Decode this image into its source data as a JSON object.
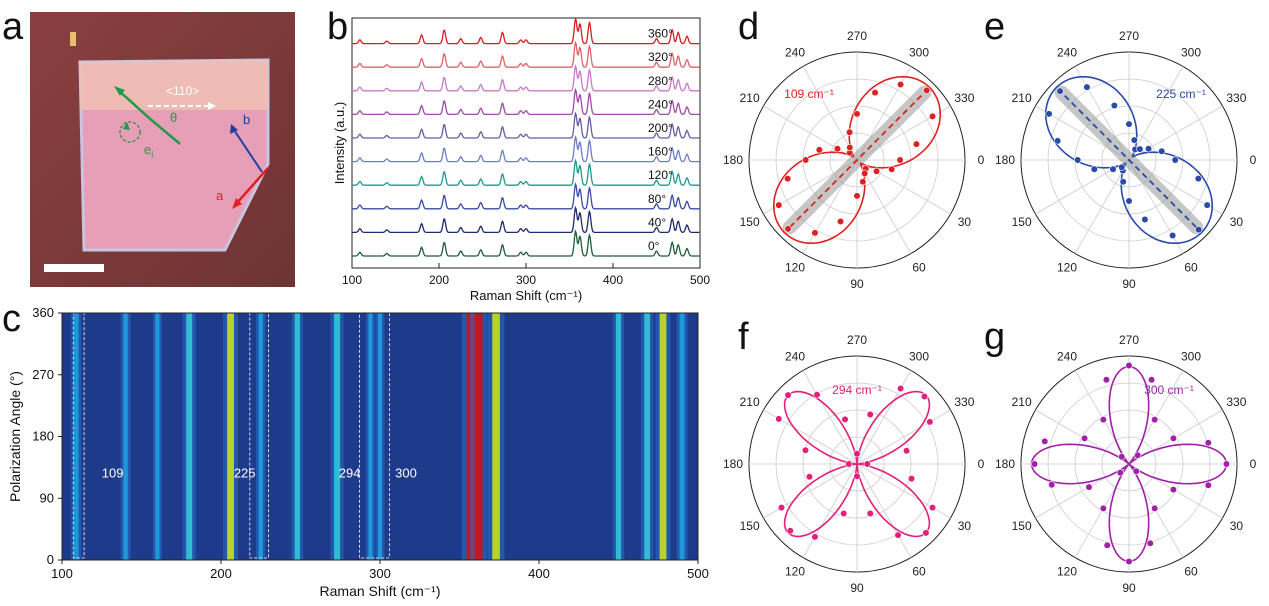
{
  "panels": {
    "a": {
      "letter": "a",
      "direction_label": "<110>",
      "theta": "θ",
      "ei": "e",
      "ei_sub": "i",
      "axis_a": "a",
      "axis_b": "b"
    },
    "b": {
      "letter": "b"
    },
    "c": {
      "letter": "c"
    },
    "d": {
      "letter": "d"
    },
    "e": {
      "letter": "e"
    },
    "f": {
      "letter": "f"
    },
    "g": {
      "letter": "g"
    }
  },
  "chart_data": [
    {
      "id": "b",
      "type": "line",
      "xlabel": "Raman Shift (cm⁻¹)",
      "ylabel": "Intensity (a.u.)",
      "xlim": [
        100,
        500
      ],
      "xticks": [
        "100",
        "200",
        "300",
        "400",
        "500"
      ],
      "peaks": [
        109,
        140,
        180,
        206,
        225,
        248,
        273,
        294,
        300,
        357,
        362,
        373,
        450,
        468,
        475,
        485
      ],
      "series": [
        {
          "name": "0°",
          "color": "#1e5c3a"
        },
        {
          "name": "40°",
          "color": "#1f2a6e"
        },
        {
          "name": "80°",
          "color": "#3a4aa8"
        },
        {
          "name": "120°",
          "color": "#1c9a8e"
        },
        {
          "name": "160°",
          "color": "#6c7ec8"
        },
        {
          "name": "200°",
          "color": "#6a5aa8"
        },
        {
          "name": "240°",
          "color": "#a04aa8"
        },
        {
          "name": "280°",
          "color": "#c879c8"
        },
        {
          "name": "320°",
          "color": "#e0606a"
        },
        {
          "name": "360°",
          "color": "#d61f1f"
        }
      ]
    },
    {
      "id": "c",
      "type": "heatmap",
      "xlabel": "Raman Shift (cm⁻¹)",
      "ylabel": "Polarization Angle (°)",
      "xlim": [
        100,
        500
      ],
      "ylim": [
        0,
        360
      ],
      "xticks": [
        "100",
        "200",
        "300",
        "400",
        "500"
      ],
      "yticks": [
        "0",
        "90",
        "180",
        "270",
        "360"
      ],
      "annotations": [
        "109",
        "225",
        "294",
        "300"
      ],
      "bands": [
        {
          "x": 109,
          "intensity": 0.35
        },
        {
          "x": 140,
          "intensity": 0.3
        },
        {
          "x": 160,
          "intensity": 0.25
        },
        {
          "x": 180,
          "intensity": 0.6
        },
        {
          "x": 206,
          "intensity": 0.75
        },
        {
          "x": 225,
          "intensity": 0.3
        },
        {
          "x": 248,
          "intensity": 0.45
        },
        {
          "x": 273,
          "intensity": 0.6
        },
        {
          "x": 294,
          "intensity": 0.25
        },
        {
          "x": 300,
          "intensity": 0.25
        },
        {
          "x": 357,
          "intensity": 1.0
        },
        {
          "x": 362,
          "intensity": 0.95
        },
        {
          "x": 373,
          "intensity": 0.9
        },
        {
          "x": 450,
          "intensity": 0.45
        },
        {
          "x": 468,
          "intensity": 0.55
        },
        {
          "x": 478,
          "intensity": 0.75
        },
        {
          "x": 490,
          "intensity": 0.4
        }
      ]
    },
    {
      "id": "d",
      "type": "polar",
      "label": "109 cm⁻¹",
      "color": "#e02020",
      "angle_labels": [
        "270",
        "300",
        "330",
        "0",
        "30",
        "60",
        "90",
        "120",
        "150",
        "180",
        "210",
        "240"
      ],
      "model": {
        "a": 0.05,
        "b": 0.95,
        "phase": 135,
        "power": 2
      },
      "points_angles": [
        0,
        15,
        30,
        45,
        60,
        75,
        90,
        105,
        120,
        135,
        150,
        165,
        180,
        195,
        210,
        225,
        240,
        255,
        270,
        285,
        300,
        315,
        330,
        345
      ],
      "points_r": [
        0.42,
        0.35,
        0.22,
        0.12,
        0.15,
        0.22,
        0.35,
        0.62,
        0.82,
        0.95,
        0.88,
        0.7,
        0.5,
        0.38,
        0.22,
        0.1,
        0.14,
        0.28,
        0.45,
        0.68,
        0.85,
        0.96,
        0.85,
        0.6
      ]
    },
    {
      "id": "e",
      "type": "polar",
      "label": "225 cm⁻¹",
      "color": "#2a4aa8",
      "angle_labels": [
        "270",
        "300",
        "330",
        "0",
        "30",
        "60",
        "90",
        "120",
        "150",
        "180",
        "210",
        "240"
      ],
      "model": {
        "a": 0.05,
        "b": 0.95,
        "phase": 45,
        "power": 2
      },
      "points_angles": [
        0,
        15,
        30,
        45,
        60,
        75,
        90,
        105,
        120,
        135,
        150,
        165,
        180,
        195,
        210,
        225,
        240,
        255,
        270,
        285,
        300,
        315,
        330,
        345
      ],
      "points_r": [
        0.45,
        0.7,
        0.88,
        0.96,
        0.85,
        0.6,
        0.4,
        0.22,
        0.12,
        0.1,
        0.18,
        0.35,
        0.5,
        0.72,
        0.9,
        0.95,
        0.82,
        0.55,
        0.35,
        0.2,
        0.12,
        0.15,
        0.22,
        0.33
      ]
    },
    {
      "id": "f",
      "type": "polar",
      "label": "294 cm⁻¹",
      "color": "#e0207a",
      "angle_labels": [
        "270",
        "300",
        "330",
        "0",
        "30",
        "60",
        "90",
        "120",
        "150",
        "180",
        "210",
        "240"
      ],
      "model": {
        "a": 0.0,
        "b": 0.95,
        "phase": 45,
        "power": 4
      },
      "points_angles": [
        0,
        15,
        30,
        45,
        60,
        75,
        90,
        105,
        120,
        135,
        150,
        165,
        180,
        195,
        210,
        225,
        240,
        255,
        270,
        285,
        300,
        315,
        330,
        345
      ],
      "points_r": [
        0.1,
        0.55,
        0.85,
        0.95,
        0.8,
        0.5,
        0.12,
        0.5,
        0.82,
        0.92,
        0.85,
        0.48,
        0.08,
        0.52,
        0.88,
        0.95,
        0.78,
        0.45,
        0.1,
        0.5,
        0.85,
        0.93,
        0.82,
        0.5
      ]
    },
    {
      "id": "g",
      "type": "polar",
      "label": "300 cm⁻¹",
      "color": "#a020a8",
      "angle_labels": [
        "270",
        "300",
        "330",
        "0",
        "30",
        "60",
        "90",
        "120",
        "150",
        "180",
        "210",
        "240"
      ],
      "model": {
        "a": 0.0,
        "b": 0.95,
        "phase": 0,
        "power": 4
      },
      "points_angles": [
        0,
        15,
        30,
        45,
        60,
        75,
        90,
        105,
        120,
        135,
        150,
        165,
        180,
        195,
        210,
        225,
        240,
        255,
        270,
        285,
        300,
        315,
        330,
        345
      ],
      "points_r": [
        0.95,
        0.8,
        0.5,
        0.1,
        0.5,
        0.8,
        0.95,
        0.82,
        0.5,
        0.12,
        0.45,
        0.78,
        0.92,
        0.85,
        0.5,
        0.1,
        0.5,
        0.85,
        0.96,
        0.85,
        0.5,
        0.12,
        0.5,
        0.8
      ]
    }
  ],
  "colors": {
    "heat_low": "#1e3a8a",
    "heat_mid": "#1fa0e0",
    "heat_high": "#c8e020",
    "heat_peak": "#d01010"
  }
}
